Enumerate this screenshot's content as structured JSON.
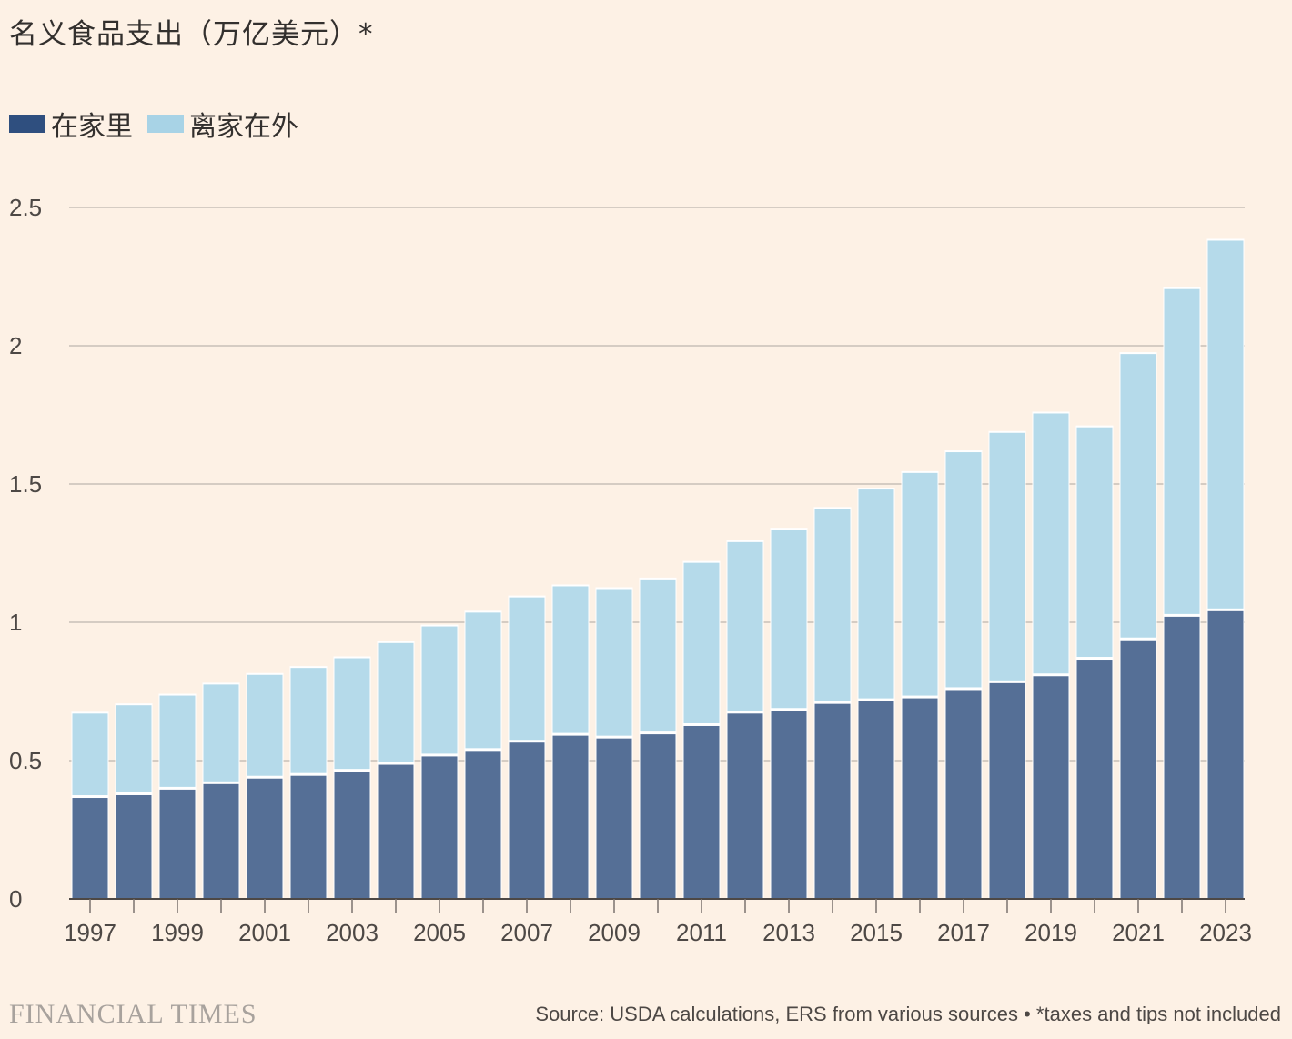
{
  "chart_data": {
    "type": "bar",
    "stacked": true,
    "title": "名义食品支出（万亿美元）*",
    "legend": [
      {
        "name": "在家里",
        "color": "#2f4f7f"
      },
      {
        "name": "离家在外",
        "color": "#a8d3e6"
      }
    ],
    "categories": [
      "1997",
      "1998",
      "1999",
      "2000",
      "2001",
      "2002",
      "2003",
      "2004",
      "2005",
      "2006",
      "2007",
      "2008",
      "2009",
      "2010",
      "2011",
      "2012",
      "2013",
      "2014",
      "2015",
      "2016",
      "2017",
      "2018",
      "2019",
      "2020",
      "2021",
      "2022",
      "2023"
    ],
    "x_tick_labels": [
      "1997",
      "1999",
      "2001",
      "2003",
      "2005",
      "2007",
      "2009",
      "2011",
      "2013",
      "2015",
      "2017",
      "2019",
      "2021",
      "2023"
    ],
    "series": [
      {
        "name": "在家里",
        "values": [
          0.37,
          0.38,
          0.4,
          0.42,
          0.44,
          0.45,
          0.465,
          0.49,
          0.52,
          0.54,
          0.57,
          0.595,
          0.585,
          0.6,
          0.63,
          0.675,
          0.685,
          0.71,
          0.72,
          0.73,
          0.76,
          0.785,
          0.81,
          0.87,
          0.94,
          1.025,
          1.045
        ]
      },
      {
        "name": "离家在外",
        "values": [
          0.3,
          0.32,
          0.335,
          0.355,
          0.37,
          0.385,
          0.405,
          0.435,
          0.465,
          0.495,
          0.52,
          0.535,
          0.535,
          0.555,
          0.585,
          0.615,
          0.65,
          0.7,
          0.76,
          0.81,
          0.855,
          0.9,
          0.945,
          0.835,
          1.03,
          1.18,
          1.335
        ]
      }
    ],
    "ylim": [
      0,
      2.5
    ],
    "y_ticks": [
      0,
      0.5,
      1,
      1.5,
      2,
      2.5
    ],
    "y_tick_labels": [
      "0",
      "0.5",
      "1",
      "1.5",
      "2",
      "2.5"
    ],
    "grid": true
  },
  "footer": {
    "logo": "FINANCIAL TIMES",
    "source": "Source: USDA calculations, ERS from various sources • *taxes and tips not included"
  }
}
